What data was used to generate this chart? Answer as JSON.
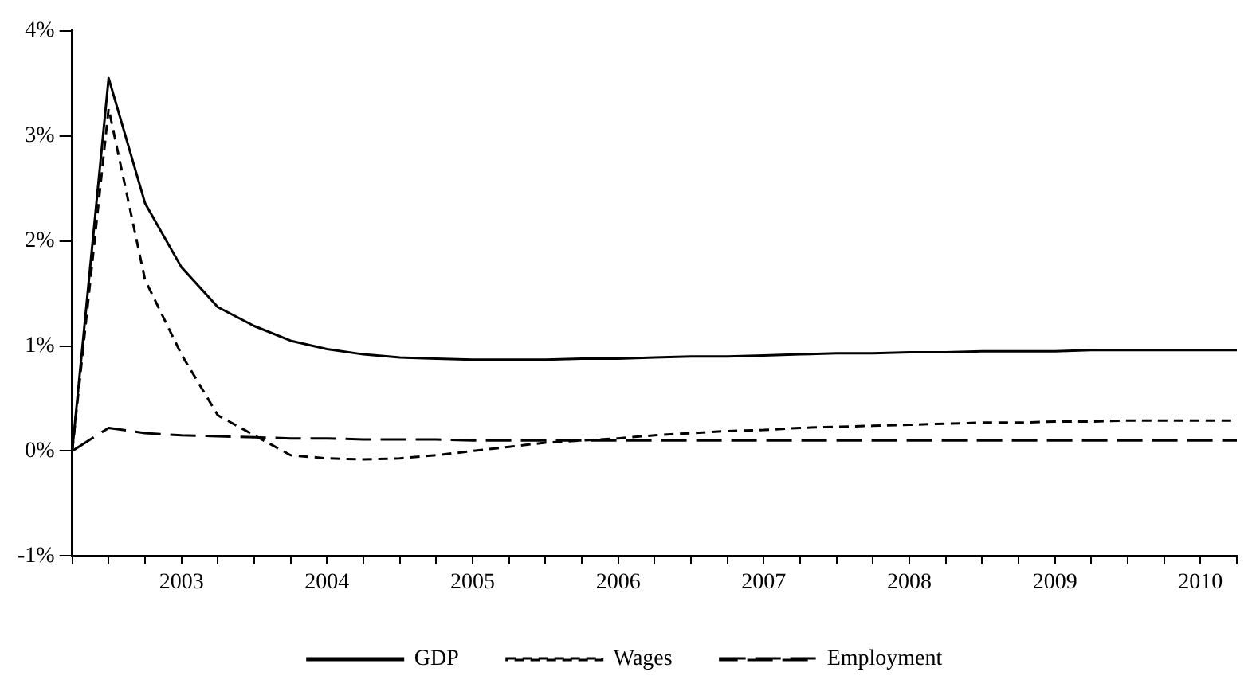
{
  "chart_data": {
    "type": "line",
    "x": [
      2002.75,
      2003,
      2003.25,
      2003.5,
      2003.75,
      2004,
      2004.25,
      2004.5,
      2004.75,
      2005,
      2005.25,
      2005.5,
      2005.75,
      2006,
      2006.25,
      2006.5,
      2006.75,
      2007,
      2007.25,
      2007.5,
      2007.75,
      2008,
      2008.25,
      2008.5,
      2008.75,
      2009,
      2009.25,
      2009.5,
      2009.75,
      2010,
      2010.25,
      2010.5,
      2010.75
    ],
    "series": [
      {
        "name": "GDP",
        "color": "#000000",
        "line_style": "solid",
        "values": [
          0,
          3.55,
          2.36,
          1.75,
          1.37,
          1.19,
          1.05,
          0.97,
          0.92,
          0.89,
          0.88,
          0.87,
          0.87,
          0.87,
          0.88,
          0.88,
          0.89,
          0.9,
          0.9,
          0.91,
          0.92,
          0.93,
          0.93,
          0.94,
          0.94,
          0.95,
          0.95,
          0.95,
          0.96,
          0.96,
          0.96,
          0.96,
          0.96
        ]
      },
      {
        "name": "Wages",
        "color": "#000000",
        "line_style": "dashed",
        "values": [
          0,
          3.26,
          1.63,
          0.92,
          0.34,
          0.15,
          -0.04,
          -0.07,
          -0.08,
          -0.07,
          -0.04,
          0,
          0.04,
          0.08,
          0.1,
          0.12,
          0.15,
          0.17,
          0.19,
          0.2,
          0.22,
          0.23,
          0.24,
          0.25,
          0.26,
          0.27,
          0.27,
          0.28,
          0.28,
          0.29,
          0.29,
          0.29,
          0.29
        ]
      },
      {
        "name": "Employment",
        "color": "#000000",
        "line_style": "dashed",
        "values": [
          0,
          0.22,
          0.17,
          0.15,
          0.14,
          0.13,
          0.12,
          0.12,
          0.11,
          0.11,
          0.11,
          0.1,
          0.1,
          0.1,
          0.1,
          0.1,
          0.1,
          0.1,
          0.1,
          0.1,
          0.1,
          0.1,
          0.1,
          0.1,
          0.1,
          0.1,
          0.1,
          0.1,
          0.1,
          0.1,
          0.1,
          0.1,
          0.1
        ]
      }
    ],
    "xlim": [
      2002.75,
      2010.75
    ],
    "xticks": [
      {
        "value": 2002.75,
        "label": null
      },
      {
        "value": 2003,
        "label": null
      },
      {
        "value": 2003.25,
        "label": null
      },
      {
        "value": 2003.75,
        "label": null
      },
      {
        "value": 2004,
        "label": null
      },
      {
        "value": 2004.25,
        "label": null
      },
      {
        "value": 2004.75,
        "label": null
      },
      {
        "value": 2005,
        "label": null
      },
      {
        "value": 2005.25,
        "label": null
      },
      {
        "value": 2005.75,
        "label": null
      },
      {
        "value": 2006,
        "label": null
      },
      {
        "value": 2006.25,
        "label": null
      },
      {
        "value": 2006.75,
        "label": null
      },
      {
        "value": 2007,
        "label": null
      },
      {
        "value": 2007.25,
        "label": null
      },
      {
        "value": 2007.75,
        "label": null
      },
      {
        "value": 2008,
        "label": null
      },
      {
        "value": 2008.25,
        "label": null
      },
      {
        "value": 2008.75,
        "label": null
      },
      {
        "value": 2009,
        "label": null
      },
      {
        "value": 2009.25,
        "label": null
      },
      {
        "value": 2009.75,
        "label": null
      },
      {
        "value": 2010,
        "label": null
      },
      {
        "value": 2010.25,
        "label": null
      },
      {
        "value": 2010.75,
        "label": null
      },
      {
        "value": 2003.5,
        "label": "2003"
      },
      {
        "value": 2004.5,
        "label": "2004"
      },
      {
        "value": 2005.5,
        "label": "2005"
      },
      {
        "value": 2006.5,
        "label": "2006"
      },
      {
        "value": 2007.5,
        "label": "2007"
      },
      {
        "value": 2008.5,
        "label": "2008"
      },
      {
        "value": 2009.5,
        "label": "2009"
      },
      {
        "value": 2010.5,
        "label": "2010"
      }
    ],
    "ylim": [
      -1,
      4
    ],
    "yticks": [
      {
        "value": -1,
        "label": "-1%"
      },
      {
        "value": 0,
        "label": "0%"
      },
      {
        "value": 1,
        "label": "1%"
      },
      {
        "value": 2,
        "label": "2%"
      },
      {
        "value": 3,
        "label": "3%"
      },
      {
        "value": 4,
        "label": "4%"
      }
    ],
    "grid": false,
    "legend": "bottom",
    "marker": "none"
  }
}
